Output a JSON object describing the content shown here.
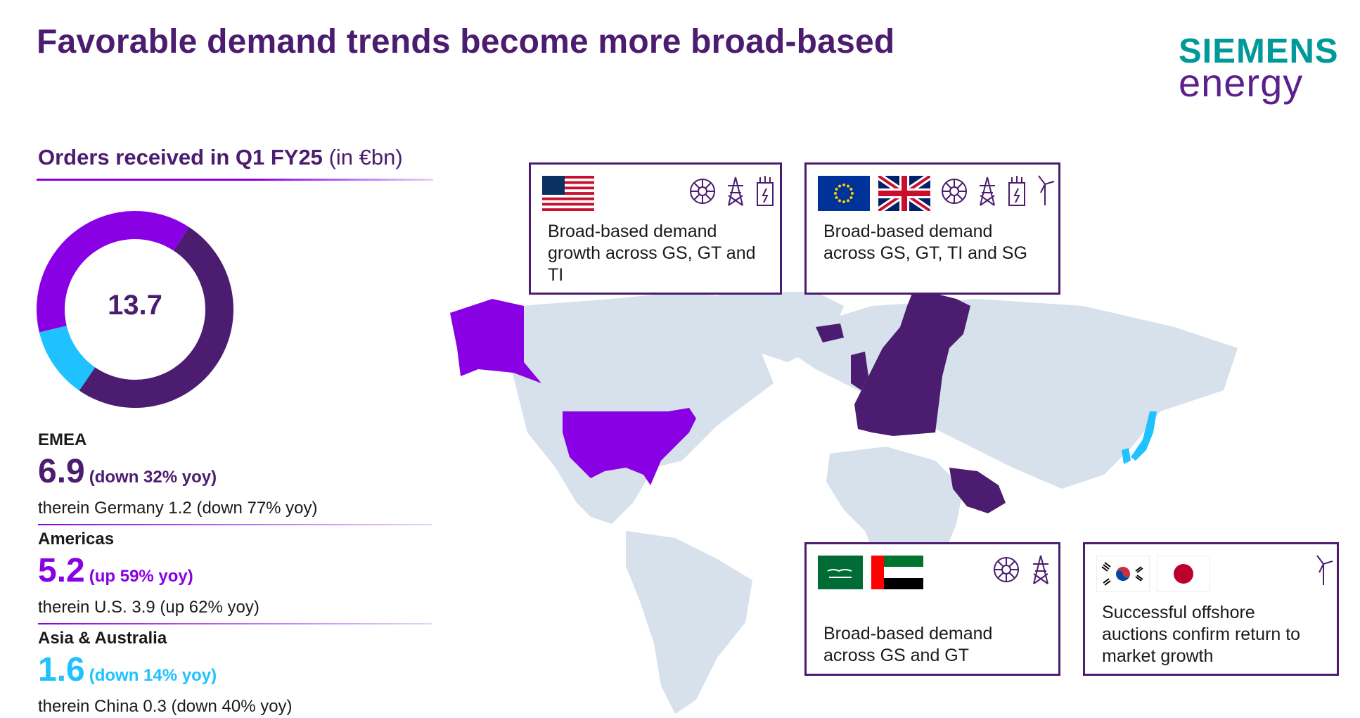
{
  "title": "Favorable demand trends become more broad-based",
  "logo": {
    "top": "SIEMENS",
    "bottom": "energy"
  },
  "orders": {
    "heading_bold": "Orders received in Q1 FY25",
    "heading_unit": "(in €bn)",
    "total": "13.7"
  },
  "regions": [
    {
      "name": "EMEA",
      "value": "6.9",
      "change": "(down 32% yoy)",
      "therein": "therein Germany 1.2 (down 77% yoy)",
      "color": "#4b1c6f"
    },
    {
      "name": "Americas",
      "value": "5.2",
      "change": "(up 59% yoy)",
      "therein": "therein U.S. 3.9 (up 62% yoy)",
      "color": "#8a00e5"
    },
    {
      "name": "Asia & Australia",
      "value": "1.6",
      "change": "(down 14% yoy)",
      "therein": "therein China 0.3 (down 40% yoy)",
      "color": "#1fc2ff"
    }
  ],
  "chart_data": {
    "type": "pie",
    "variant": "donut",
    "total": 13.7,
    "categories": [
      "EMEA",
      "Americas",
      "Asia & Australia"
    ],
    "values": [
      6.9,
      5.2,
      1.6
    ],
    "colors": [
      "#4b1c6f",
      "#8a00e5",
      "#1fc2ff"
    ]
  },
  "cards": {
    "us": {
      "text": "Broad-based demand growth across GS, GT and TI",
      "flags": [
        "us-flag"
      ],
      "icons": [
        "gas-turbine-icon",
        "transmission-tower-icon",
        "transformer-icon"
      ]
    },
    "europe": {
      "text": "Broad-based demand across GS, GT, TI and SG",
      "flags": [
        "eu-flag",
        "uk-flag"
      ],
      "icons": [
        "gas-turbine-icon",
        "transmission-tower-icon",
        "transformer-icon",
        "wind-turbine-icon"
      ]
    },
    "middle_east": {
      "text": "Broad-based demand across GS and GT",
      "flags": [
        "saudi-arabia-flag",
        "uae-flag"
      ],
      "icons": [
        "gas-turbine-icon",
        "transmission-tower-icon"
      ]
    },
    "asia": {
      "text": "Successful offshore auctions confirm return to market growth",
      "flags": [
        "south-korea-flag",
        "japan-flag"
      ],
      "icons": [
        "wind-turbine-icon"
      ]
    }
  },
  "colors": {
    "primary_purple": "#4b1c6f",
    "bright_purple": "#8a00e5",
    "cyan": "#1fc2ff",
    "map_land": "#d6e1ec",
    "brand_teal": "#009999"
  }
}
